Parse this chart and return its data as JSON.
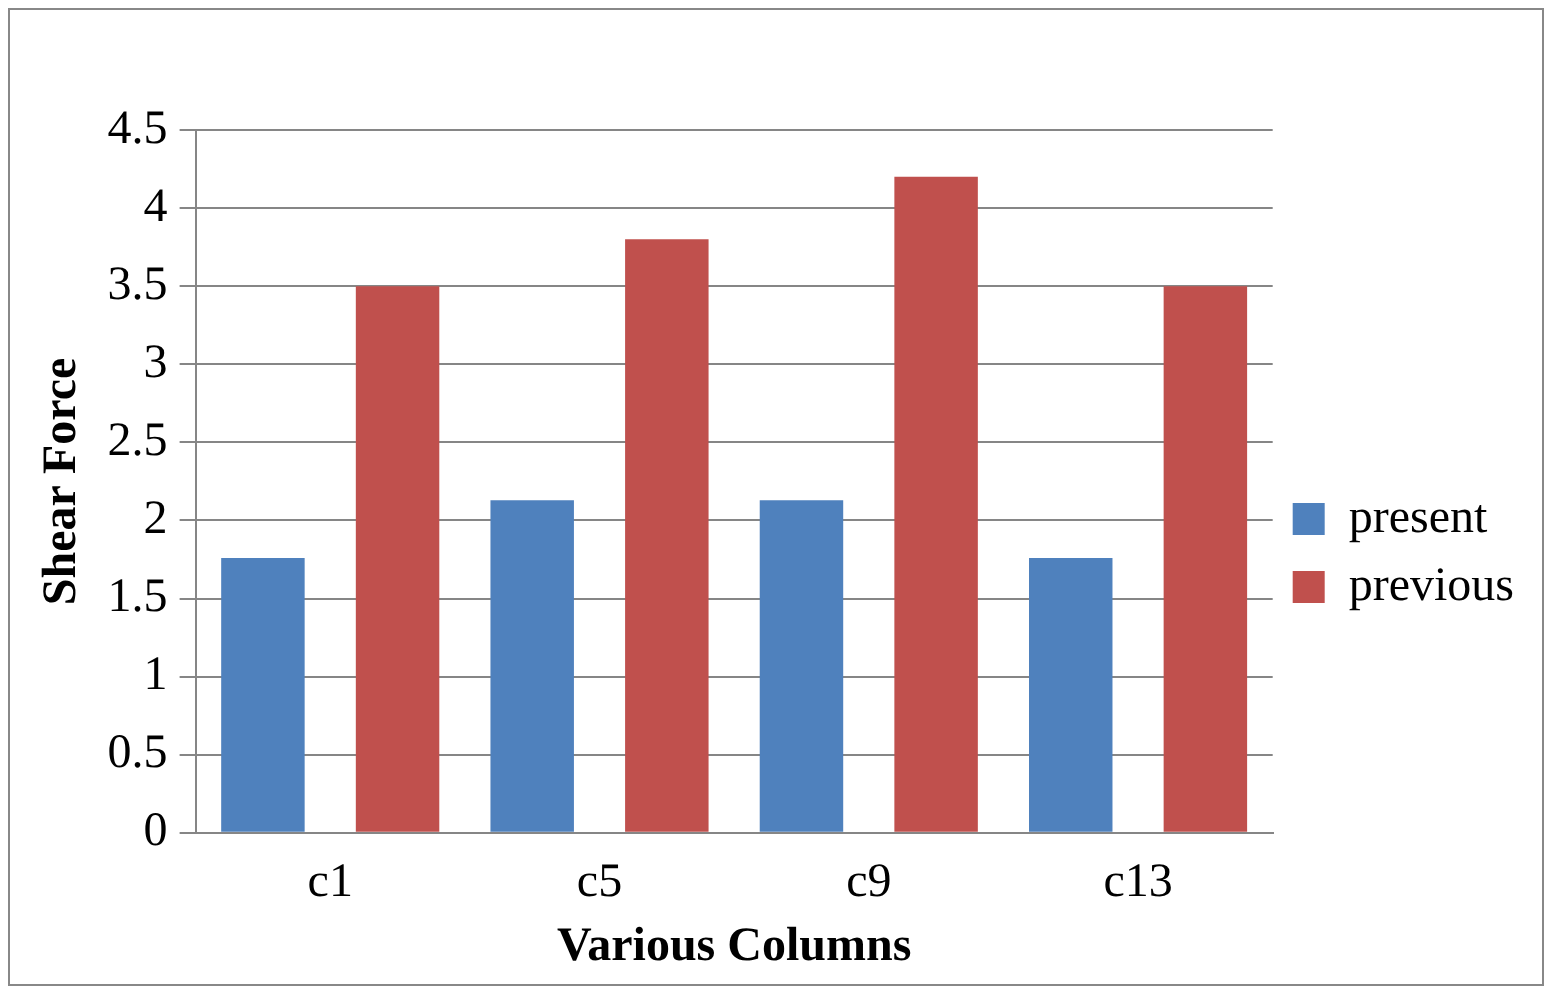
{
  "chart_data": {
    "type": "bar",
    "xlabel": "Various Columns",
    "ylabel": "Shear Force",
    "categories": [
      "c1",
      "c5",
      "c9",
      "c13"
    ],
    "series": [
      {
        "name": "present",
        "color": "#4f81bd",
        "values": [
          1.76,
          2.13,
          2.13,
          1.76
        ]
      },
      {
        "name": "previous",
        "color": "#c0504d",
        "values": [
          3.5,
          3.8,
          4.2,
          3.5
        ]
      }
    ],
    "ylim": [
      0,
      4.5
    ],
    "yticks": [
      0,
      0.5,
      1,
      1.5,
      2,
      2.5,
      3,
      3.5,
      4,
      4.5
    ],
    "grid": "y",
    "legend": "right"
  }
}
